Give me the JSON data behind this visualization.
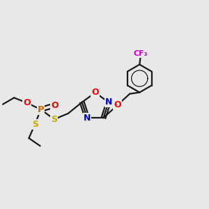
{
  "bg_color": "#e8e8e8",
  "bond_color": "#1a1a1a",
  "bw": 1.6,
  "dbo": 0.012,
  "atom_colors": {
    "O": "#ff0000",
    "N": "#0000cc",
    "S": "#ccaa00",
    "P": "#cc6600",
    "F": "#cc00cc",
    "C": "#1a1a1a"
  },
  "fs": 9.0
}
